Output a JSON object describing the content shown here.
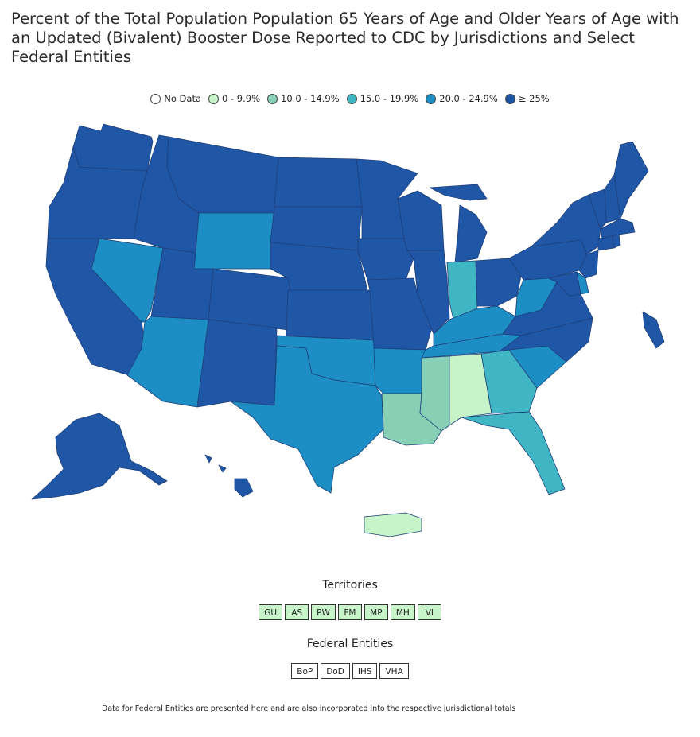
{
  "title": "Percent of the Total Population Population 65 Years of Age and Older Years of Age with an Updated (Bivalent) Booster Dose Reported to CDC by Jurisdictions and Select Federal Entities",
  "legend": [
    {
      "label": "No Data",
      "color": "#ffffff"
    },
    {
      "label": "0 - 9.9%",
      "color": "#c7f5c9"
    },
    {
      "label": "10.0 - 14.9%",
      "color": "#88d0b5"
    },
    {
      "label": "15.0 - 19.9%",
      "color": "#40b6c4"
    },
    {
      "label": "20.0 - 24.9%",
      "color": "#1d8ec3"
    },
    {
      "label": "≥ 25%",
      "color": "#2056a6"
    }
  ],
  "state_categories": {
    "WA": "≥ 25%",
    "OR": "≥ 25%",
    "CA": "≥ 25%",
    "NV": "20.0 - 24.9%",
    "ID": "≥ 25%",
    "MT": "≥ 25%",
    "WY": "20.0 - 24.9%",
    "UT": "≥ 25%",
    "AZ": "20.0 - 24.9%",
    "CO": "≥ 25%",
    "NM": "≥ 25%",
    "ND": "≥ 25%",
    "SD": "≥ 25%",
    "NE": "≥ 25%",
    "KS": "≥ 25%",
    "OK": "20.0 - 24.9%",
    "TX": "20.0 - 24.9%",
    "MN": "≥ 25%",
    "IA": "≥ 25%",
    "MO": "≥ 25%",
    "AR": "20.0 - 24.9%",
    "LA": "10.0 - 14.9%",
    "WI": "≥ 25%",
    "IL": "≥ 25%",
    "MI": "≥ 25%",
    "IN": "15.0 - 19.9%",
    "OH": "≥ 25%",
    "KY": "20.0 - 24.9%",
    "TN": "20.0 - 24.9%",
    "MS": "10.0 - 14.9%",
    "AL": "0 - 9.9%",
    "GA": "15.0 - 19.9%",
    "FL": "15.0 - 19.9%",
    "SC": "20.0 - 24.9%",
    "NC": "≥ 25%",
    "VA": "≥ 25%",
    "WV": "20.0 - 24.9%",
    "PA": "≥ 25%",
    "NY": "≥ 25%",
    "NJ": "≥ 25%",
    "DE": "20.0 - 24.9%",
    "MD": "≥ 25%",
    "VT": "≥ 25%",
    "NH": "≥ 25%",
    "ME": "≥ 25%",
    "MA": "≥ 25%",
    "CT": "≥ 25%",
    "RI": "≥ 25%",
    "AK": "≥ 25%",
    "HI": "≥ 25%",
    "PR": "0 - 9.9%",
    "NYC": "≥ 25%"
  },
  "territories": {
    "heading": "Territories",
    "items": [
      "GU",
      "AS",
      "PW",
      "FM",
      "MP",
      "MH",
      "VI"
    ],
    "category": "0 - 9.9%"
  },
  "federal": {
    "heading": "Federal Entities",
    "items": [
      "BoP",
      "DoD",
      "IHS",
      "VHA"
    ],
    "category": "No Data"
  },
  "footnote": "Data for Federal Entities are presented here and are also incorporated into the respective jurisdictional totals"
}
